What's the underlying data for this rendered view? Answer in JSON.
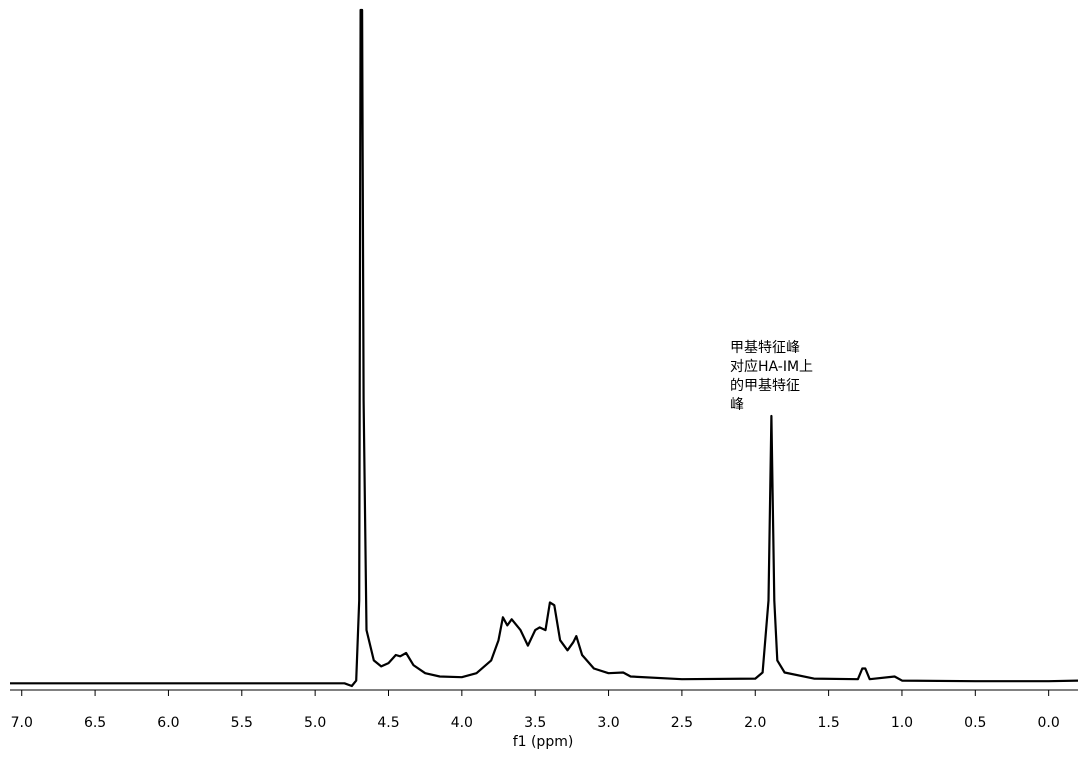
{
  "chart_data": {
    "type": "line",
    "xlabel": "f1 (ppm)",
    "annotation": [
      "甲基特征峰",
      "对应HA-IM上",
      "的甲基特征",
      "峰"
    ],
    "color": "#000000",
    "xlim": [
      7.08,
      -0.2
    ],
    "ylim": [
      -1,
      100
    ],
    "xticks": [
      {
        "value": 7.0,
        "label": "7.0"
      },
      {
        "value": 6.5,
        "label": "6.5"
      },
      {
        "value": 6.0,
        "label": "6.0"
      },
      {
        "value": 5.5,
        "label": "5.5"
      },
      {
        "value": 5.0,
        "label": "5.0"
      },
      {
        "value": 4.5,
        "label": "4.5"
      },
      {
        "value": 4.0,
        "label": "4.0"
      },
      {
        "value": 3.5,
        "label": "3.5"
      },
      {
        "value": 3.0,
        "label": "3.0"
      },
      {
        "value": 2.5,
        "label": "2.5"
      },
      {
        "value": 2.0,
        "label": "2.0"
      },
      {
        "value": 1.5,
        "label": "1.5"
      },
      {
        "value": 1.0,
        "label": "1.0"
      },
      {
        "value": 0.5,
        "label": "0.5"
      },
      {
        "value": 0.0,
        "label": "0.0"
      }
    ],
    "x": [
      7.08,
      6.0,
      5.0,
      4.8,
      4.75,
      4.72,
      4.7,
      4.69,
      4.68,
      4.67,
      4.65,
      4.6,
      4.55,
      4.5,
      4.45,
      4.42,
      4.38,
      4.33,
      4.25,
      4.15,
      4.0,
      3.9,
      3.8,
      3.75,
      3.72,
      3.69,
      3.66,
      3.6,
      3.55,
      3.5,
      3.47,
      3.43,
      3.4,
      3.37,
      3.33,
      3.28,
      3.24,
      3.22,
      3.18,
      3.1,
      3.0,
      2.9,
      2.85,
      2.5,
      2.0,
      1.95,
      1.91,
      1.89,
      1.87,
      1.85,
      1.8,
      1.6,
      1.3,
      1.27,
      1.25,
      1.22,
      1.05,
      1.0,
      0.5,
      0.0,
      -0.2
    ],
    "values": [
      0,
      0,
      0,
      0,
      -0.4,
      0.4,
      12.3,
      100,
      100,
      42.1,
      7.9,
      3.4,
      2.5,
      3.0,
      4.2,
      4.0,
      4.5,
      2.7,
      1.5,
      1.0,
      0.9,
      1.5,
      3.4,
      6.4,
      9.8,
      8.6,
      9.5,
      7.9,
      5.6,
      7.9,
      8.3,
      7.9,
      12.0,
      11.6,
      6.4,
      4.9,
      6.1,
      7.0,
      4.2,
      2.2,
      1.5,
      1.6,
      1.0,
      0.6,
      0.7,
      1.6,
      12.3,
      39.7,
      12.3,
      3.4,
      1.6,
      0.7,
      0.6,
      2.2,
      2.2,
      0.6,
      1.0,
      0.4,
      0.3,
      0.3,
      0.4
    ]
  }
}
